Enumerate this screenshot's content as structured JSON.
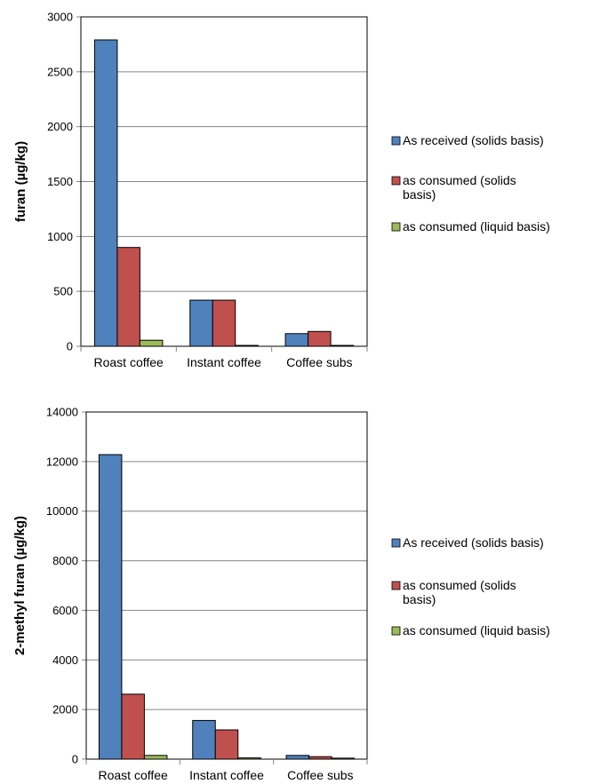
{
  "chart_data": [
    {
      "type": "bar",
      "ylabel": "furan (µg/kg)",
      "ylim": [
        0,
        3000
      ],
      "ytick_step": 500,
      "yticks": [
        "0",
        "500",
        "1000",
        "1500",
        "2000",
        "2500",
        "3000"
      ],
      "categories": [
        "Roast coffee",
        "Instant coffee",
        "Coffee subs"
      ],
      "series": [
        {
          "name": "As received (solids basis)",
          "color": "#4f81bd",
          "values": [
            2790,
            420,
            115
          ]
        },
        {
          "name": "as consumed (solids basis)",
          "color": "#c0504d",
          "values": [
            900,
            420,
            135
          ]
        },
        {
          "name": "as consumed (liquid basis)",
          "color": "#9bbb59",
          "values": [
            55,
            8,
            8
          ]
        }
      ],
      "legend_lines": [
        [
          "As received (solids basis)"
        ],
        [
          "as consumed (solids",
          "basis)"
        ],
        [
          "as consumed (liquid basis)"
        ]
      ],
      "legend_position": "right",
      "grid": true
    },
    {
      "type": "bar",
      "ylabel": "2-methyl furan (µg/kg)",
      "ylim": [
        0,
        14000
      ],
      "ytick_step": 2000,
      "yticks": [
        "0",
        "2000",
        "4000",
        "6000",
        "8000",
        "10000",
        "12000",
        "14000"
      ],
      "categories": [
        "Roast coffee",
        "Instant coffee",
        "Coffee subs"
      ],
      "series": [
        {
          "name": "As received (solids basis)",
          "color": "#4f81bd",
          "values": [
            12280,
            1560,
            150
          ]
        },
        {
          "name": "as consumed (solids basis)",
          "color": "#c0504d",
          "values": [
            2620,
            1180,
            100
          ]
        },
        {
          "name": "as consumed (liquid basis)",
          "color": "#9bbb59",
          "values": [
            150,
            50,
            40
          ]
        }
      ],
      "legend_lines": [
        [
          "As received (solids basis)"
        ],
        [
          "as consumed (solids",
          "basis)"
        ],
        [
          "as consumed (liquid basis)"
        ]
      ],
      "legend_position": "right",
      "grid": true
    }
  ]
}
